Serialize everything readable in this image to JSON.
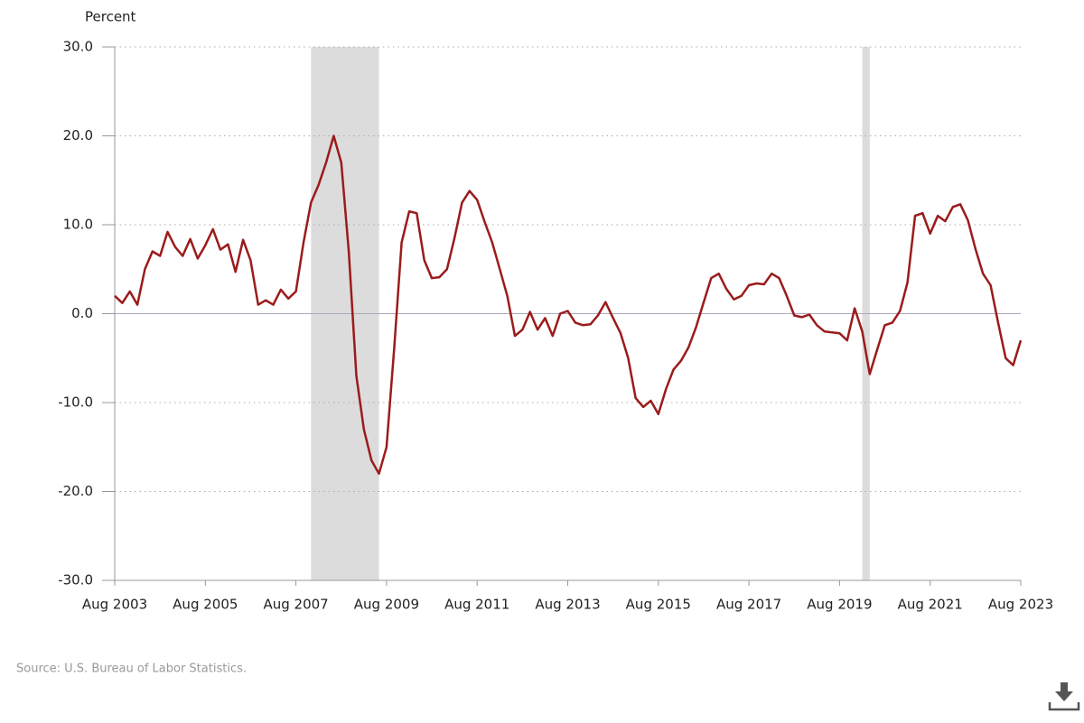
{
  "chart_data": {
    "type": "line",
    "y_label": "Percent",
    "source": "Source: U.S. Bureau of Labor Statistics.",
    "x": [
      "Aug 2003",
      "Oct 2003",
      "Dec 2003",
      "Feb 2004",
      "Apr 2004",
      "Jun 2004",
      "Aug 2004",
      "Oct 2004",
      "Dec 2004",
      "Feb 2005",
      "Apr 2005",
      "Jun 2005",
      "Aug 2005",
      "Oct 2005",
      "Dec 2005",
      "Feb 2006",
      "Apr 2006",
      "Jun 2006",
      "Aug 2006",
      "Oct 2006",
      "Dec 2006",
      "Feb 2007",
      "Apr 2007",
      "Jun 2007",
      "Aug 2007",
      "Oct 2007",
      "Dec 2007",
      "Feb 2008",
      "Apr 2008",
      "Jun 2008",
      "Aug 2008",
      "Oct 2008",
      "Dec 2008",
      "Feb 2009",
      "Apr 2009",
      "Jun 2009",
      "Aug 2009",
      "Oct 2009",
      "Dec 2009",
      "Feb 2010",
      "Apr 2010",
      "Jun 2010",
      "Aug 2010",
      "Oct 2010",
      "Dec 2010",
      "Feb 2011",
      "Apr 2011",
      "Jun 2011",
      "Aug 2011",
      "Oct 2011",
      "Dec 2011",
      "Feb 2012",
      "Apr 2012",
      "Jun 2012",
      "Aug 2012",
      "Oct 2012",
      "Dec 2012",
      "Feb 2013",
      "Apr 2013",
      "Jun 2013",
      "Aug 2013",
      "Oct 2013",
      "Dec 2013",
      "Feb 2014",
      "Apr 2014",
      "Jun 2014",
      "Aug 2014",
      "Oct 2014",
      "Dec 2014",
      "Feb 2015",
      "Apr 2015",
      "Jun 2015",
      "Aug 2015",
      "Oct 2015",
      "Dec 2015",
      "Feb 2016",
      "Apr 2016",
      "Jun 2016",
      "Aug 2016",
      "Oct 2016",
      "Dec 2016",
      "Feb 2017",
      "Apr 2017",
      "Jun 2017",
      "Aug 2017",
      "Oct 2017",
      "Dec 2017",
      "Feb 2018",
      "Apr 2018",
      "Jun 2018",
      "Aug 2018",
      "Oct 2018",
      "Dec 2018",
      "Feb 2019",
      "Apr 2019",
      "Jun 2019",
      "Aug 2019",
      "Oct 2019",
      "Dec 2019",
      "Feb 2020",
      "Apr 2020",
      "Jun 2020",
      "Aug 2020",
      "Oct 2020",
      "Dec 2020",
      "Feb 2021",
      "Apr 2021",
      "Jun 2021",
      "Aug 2021",
      "Oct 2021",
      "Dec 2021",
      "Feb 2022",
      "Apr 2022",
      "Jun 2022",
      "Aug 2022",
      "Oct 2022",
      "Dec 2022",
      "Feb 2023",
      "Apr 2023",
      "Jun 2023",
      "Aug 2023"
    ],
    "series": [
      {
        "color": "#9b1b1b",
        "values": [
          2.0,
          1.2,
          2.5,
          1.0,
          5.0,
          7.0,
          6.5,
          9.2,
          7.5,
          6.5,
          8.4,
          6.2,
          7.7,
          9.5,
          7.2,
          7.8,
          4.7,
          8.3,
          6.0,
          1.0,
          1.5,
          1.0,
          2.7,
          1.7,
          2.5,
          8.0,
          12.5,
          14.5,
          17.0,
          20.0,
          17.0,
          7.0,
          -7.0,
          -13.0,
          -16.5,
          -18.0,
          -15.0,
          -4.0,
          8.0,
          11.5,
          11.3,
          6.0,
          4.0,
          4.1,
          5.0,
          8.5,
          12.5,
          13.8,
          12.8,
          10.3,
          8.0,
          5.0,
          2.0,
          -2.5,
          -1.8,
          0.2,
          -1.8,
          -0.5,
          -2.5,
          0.0,
          0.3,
          -1.0,
          -1.3,
          -1.2,
          -0.2,
          1.3,
          -0.5,
          -2.2,
          -5.0,
          -9.5,
          -10.5,
          -9.8,
          -11.3,
          -8.5,
          -6.3,
          -5.3,
          -3.8,
          -1.5,
          1.3,
          4.0,
          4.5,
          2.8,
          1.6,
          2.0,
          3.2,
          3.4,
          3.3,
          4.5,
          4.0,
          2.0,
          -0.2,
          -0.4,
          -0.1,
          -1.3,
          -2.0,
          -2.1,
          -2.2,
          -3.0,
          0.6,
          -2.0,
          -6.8,
          -4.0,
          -1.3,
          -1.0,
          0.3,
          3.5,
          11.0,
          11.3,
          9.0,
          11.0,
          10.4,
          12.0,
          12.3,
          10.5,
          7.3,
          4.5,
          3.2,
          -1.0,
          -5.0,
          -5.8,
          -3.0
        ]
      }
    ],
    "xticks": [
      "Aug 2003",
      "Aug 2005",
      "Aug 2007",
      "Aug 2009",
      "Aug 2011",
      "Aug 2013",
      "Aug 2015",
      "Aug 2017",
      "Aug 2019",
      "Aug 2021",
      "Aug 2023"
    ],
    "shaded_periods": [
      [
        "Dec 2007",
        "Jun 2009"
      ],
      [
        "Feb 2020",
        "Apr 2020"
      ]
    ],
    "ylim": [
      -30,
      30
    ],
    "yticks": [
      {
        "value": -30,
        "label": "-30.0"
      },
      {
        "value": -20,
        "label": "-20.0"
      },
      {
        "value": -10,
        "label": "-10.0"
      },
      {
        "value": 0,
        "label": "0.0"
      },
      {
        "value": 10,
        "label": "10.0"
      },
      {
        "value": 20,
        "label": "20.0"
      },
      {
        "value": 30,
        "label": "30.0"
      }
    ],
    "grid": true
  }
}
